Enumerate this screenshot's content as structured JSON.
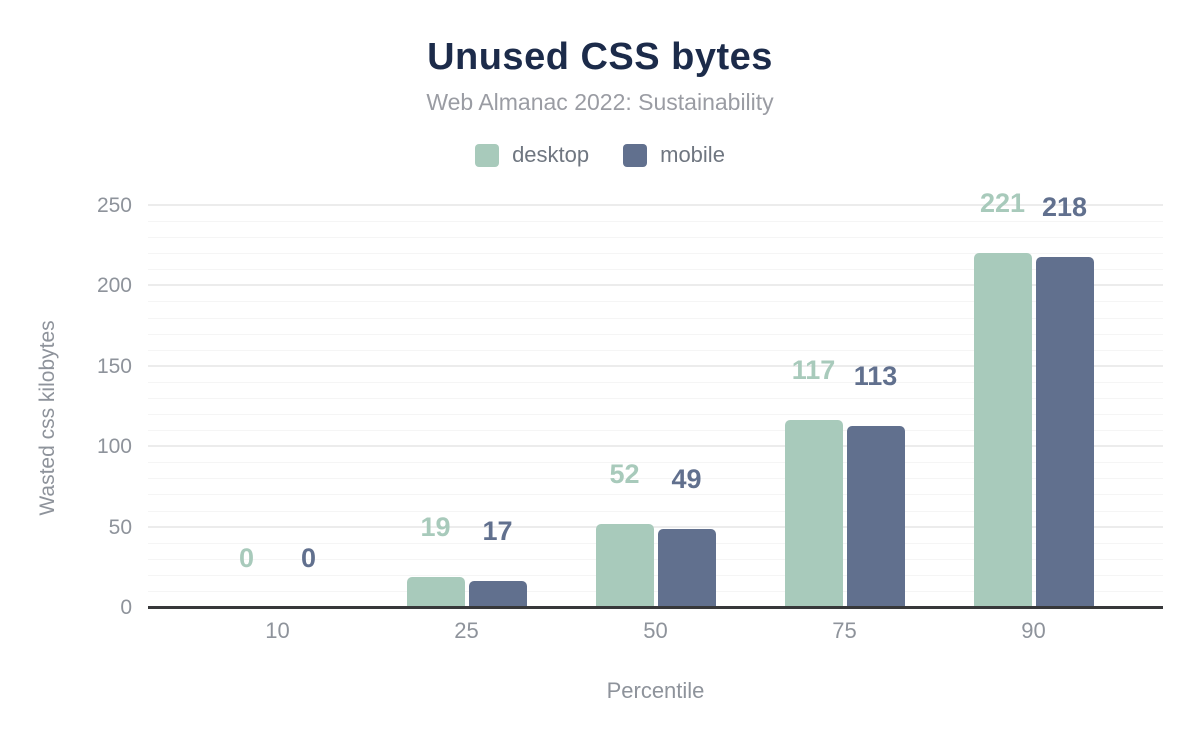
{
  "title": "Unused CSS bytes",
  "subtitle": "Web Almanac 2022: Sustainability",
  "chart_data": {
    "type": "bar",
    "categories": [
      "10",
      "25",
      "50",
      "75",
      "90"
    ],
    "series": [
      {
        "name": "desktop",
        "color": "#a8cabb",
        "values": [
          0,
          19,
          52,
          117,
          221
        ]
      },
      {
        "name": "mobile",
        "color": "#61708e",
        "values": [
          0,
          17,
          49,
          113,
          218
        ]
      }
    ],
    "title": "Unused CSS bytes",
    "subtitle": "Web Almanac 2022: Sustainability",
    "xlabel": "Percentile",
    "ylabel": "Wasted css kilobytes",
    "ylim": [
      0,
      250
    ],
    "yticks": [
      0,
      50,
      100,
      150,
      200,
      250
    ],
    "grid": "horizontal, minor every 10, major every 50",
    "legend_position": "top",
    "value_labels": "above each bar, colored to match its series"
  },
  "colors": {
    "title_text": "#1c2b4a",
    "subtitle_text": "#9a9ca3",
    "legend_text": "#6f7680",
    "tick_text": "#8e939b",
    "axis_line": "#37383a",
    "grid_major": "#ececec",
    "grid_minor": "#f5f5f5",
    "background": "#ffffff",
    "desktop": "#a8cabb",
    "mobile": "#61708e"
  }
}
